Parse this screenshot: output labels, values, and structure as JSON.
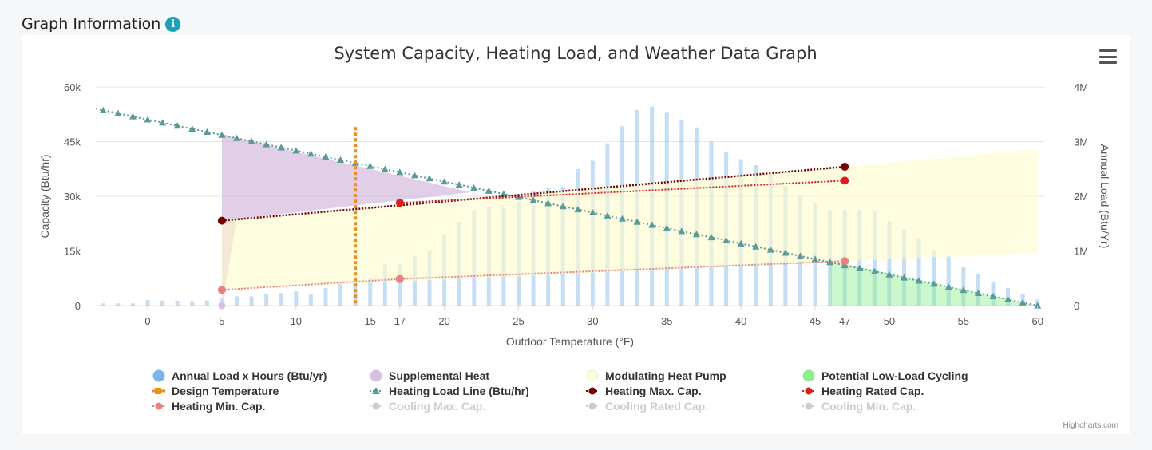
{
  "header": {
    "title": "Graph Information",
    "info_icon": "info-icon"
  },
  "credits": "Highcharts.com",
  "colors": {
    "annual_load": "#7cb5ec",
    "supplemental": "#d7bfdf",
    "modulating": "#ffffe0",
    "low_load": "#90ed90",
    "design": "#f28f0f",
    "load_line": "#5b9a9a",
    "max_cap": "#7a0000",
    "rated_cap": "#e01b1b",
    "min_cap": "#ec7f7f",
    "hidden": "#cccccc"
  },
  "legend": [
    {
      "label": "Annual Load x Hours (Btu/yr)",
      "symbol": "circle",
      "color": "#7cb5ec",
      "hidden": false
    },
    {
      "label": "Supplemental Heat",
      "symbol": "circle",
      "color": "#d7bfdf",
      "hidden": false
    },
    {
      "label": "Modulating Heat Pump",
      "symbol": "circle",
      "color": "#fffde0",
      "hidden": false
    },
    {
      "label": "Potential Low-Load Cycling",
      "symbol": "circle",
      "color": "#90ed90",
      "hidden": false
    },
    {
      "label": "Design Temperature",
      "symbol": "square-line",
      "color": "#f28f0f",
      "hidden": false
    },
    {
      "label": "Heating Load Line (Btu/hr)",
      "symbol": "triangle-line",
      "color": "#5b9a9a",
      "hidden": false
    },
    {
      "label": "Heating Max. Cap.",
      "symbol": "circle-line",
      "color": "#7a0000",
      "hidden": false
    },
    {
      "label": "Heating Rated Cap.",
      "symbol": "circle-line",
      "color": "#e01b1b",
      "hidden": false
    },
    {
      "label": "Heating Min. Cap.",
      "symbol": "circle-line",
      "color": "#ec7f7f",
      "hidden": false
    },
    {
      "label": "Cooling Max. Cap.",
      "symbol": "circle-line",
      "color": "#cccccc",
      "hidden": true
    },
    {
      "label": "Cooling Rated Cap.",
      "symbol": "circle-line",
      "color": "#cccccc",
      "hidden": true
    },
    {
      "label": "Cooling Min. Cap.",
      "symbol": "circle-line",
      "color": "#cccccc",
      "hidden": true
    }
  ],
  "chart_data": {
    "type": "bar",
    "title": "System Capacity, Heating Load, and Weather Data Graph",
    "xlabel": "Outdoor Temperature (°F)",
    "ylabel": "Capacity (Btu/hr)",
    "ylabel2": "Annual Load (Btu/Yr)",
    "xlim": [
      -3.5,
      60.5
    ],
    "ylim": [
      0,
      60000
    ],
    "ylim2": [
      0,
      4000000
    ],
    "x_ticks": [
      0,
      5,
      10,
      15,
      17,
      20,
      25,
      30,
      35,
      40,
      45,
      47,
      50,
      55,
      60
    ],
    "y_ticks": [
      {
        "value": 0,
        "label": "0"
      },
      {
        "value": 15000,
        "label": "15k"
      },
      {
        "value": 30000,
        "label": "30k"
      },
      {
        "value": 45000,
        "label": "45k"
      },
      {
        "value": 60000,
        "label": "60k"
      }
    ],
    "y2_ticks": [
      {
        "value": 0,
        "label": "0"
      },
      {
        "value": 1000000,
        "label": "1M"
      },
      {
        "value": 2000000,
        "label": "2M"
      },
      {
        "value": 3000000,
        "label": "3M"
      },
      {
        "value": 4000000,
        "label": "4M"
      }
    ],
    "grid": true,
    "annual_load": {
      "name": "Annual Load x Hours (Btu/yr)",
      "x": [
        -3,
        -2,
        -1,
        0,
        1,
        2,
        3,
        4,
        5,
        6,
        7,
        8,
        9,
        10,
        11,
        12,
        13,
        14,
        15,
        16,
        17,
        18,
        19,
        20,
        21,
        22,
        23,
        24,
        25,
        26,
        27,
        28,
        29,
        30,
        31,
        32,
        33,
        34,
        35,
        36,
        37,
        38,
        39,
        40,
        41,
        42,
        43,
        44,
        45,
        46,
        47,
        48,
        49,
        50,
        51,
        52,
        53,
        54,
        55,
        56,
        57,
        58,
        59,
        60
      ],
      "values": [
        40000,
        40000,
        40000,
        100000,
        90000,
        90000,
        80000,
        90000,
        130000,
        170000,
        170000,
        220000,
        230000,
        260000,
        210000,
        320000,
        420000,
        450000,
        500000,
        750000,
        770000,
        900000,
        1000000,
        1300000,
        1530000,
        1740000,
        1800000,
        1800000,
        1900000,
        2100000,
        2150000,
        2180000,
        2500000,
        2650000,
        2970000,
        3280000,
        3580000,
        3640000,
        3540000,
        3400000,
        3260000,
        3000000,
        2800000,
        2680000,
        2570000,
        2400000,
        2180000,
        2000000,
        1870000,
        1740000,
        1750000,
        1750000,
        1720000,
        1550000,
        1400000,
        1230000,
        1000000,
        900000,
        700000,
        580000,
        440000,
        320000,
        210000,
        110000
      ]
    },
    "supplemental_heat": {
      "name": "Supplemental Heat",
      "x": [
        5,
        21.8
      ],
      "upper": [
        46900,
        31100
      ],
      "lower": [
        23300,
        31100
      ]
    },
    "modulating_heat_pump": {
      "name": "Modulating Heat Pump",
      "x": [
        5,
        47,
        60
      ],
      "upper": [
        23300,
        38100,
        43000
      ],
      "lower": [
        4300,
        12200,
        14500
      ]
    },
    "low_load_cycling": {
      "name": "Potential Low-Load Cycling",
      "x": [
        46,
        60
      ],
      "upper": [
        12400,
        0
      ]
    },
    "design_temperature": {
      "name": "Design Temperature",
      "x": 14,
      "ymax": 49000
    },
    "heating_load_line": {
      "name": "Heating Load Line (Btu/hr)",
      "x_start": -3,
      "y_start": 53600,
      "x_end": 60,
      "y_end": 0,
      "marker_step": 1
    },
    "heating_max_cap": {
      "name": "Heating Max. Cap.",
      "x": [
        5,
        47
      ],
      "y": [
        23300,
        38100
      ]
    },
    "heating_rated_cap": {
      "name": "Heating Rated Cap.",
      "x": [
        17,
        47
      ],
      "y": [
        28200,
        34300
      ]
    },
    "heating_min_cap": {
      "name": "Heating Min. Cap.",
      "x": [
        5,
        17,
        47
      ],
      "y": [
        4300,
        7300,
        12200
      ]
    },
    "cooling_max_cap": {
      "name": "Cooling Max. Cap.",
      "hidden": true
    },
    "cooling_rated_cap": {
      "name": "Cooling Rated Cap.",
      "hidden": true
    },
    "cooling_min_cap": {
      "name": "Cooling Min. Cap.",
      "hidden": true
    }
  }
}
